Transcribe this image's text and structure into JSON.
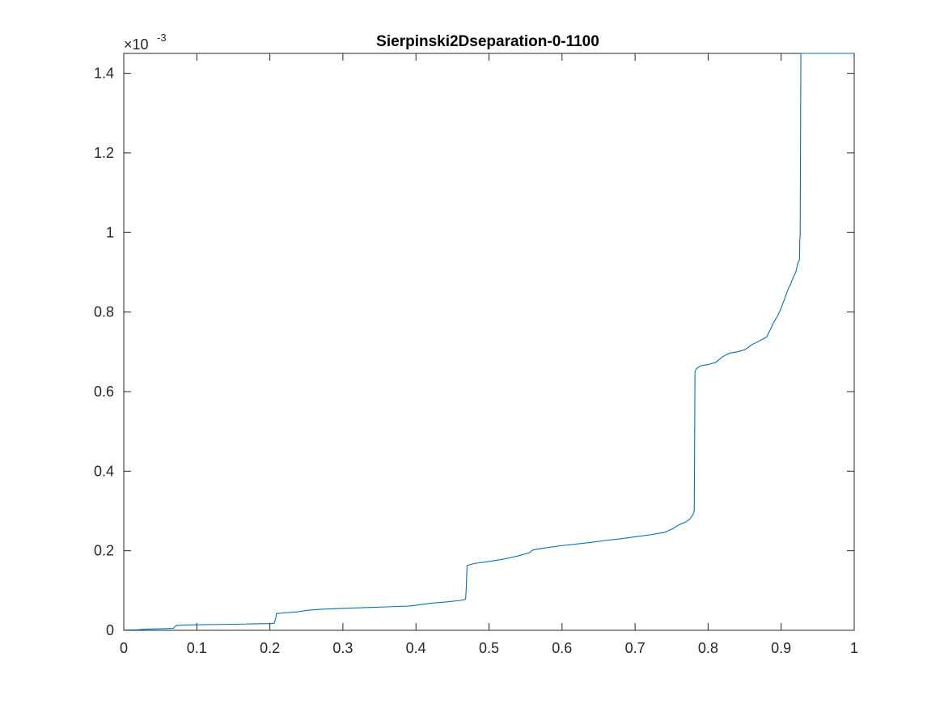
{
  "chart_data": {
    "type": "line",
    "title": "Sierpinski2Dseparation-0-1100",
    "xlabel": "",
    "ylabel": "",
    "xlim": [
      0,
      1
    ],
    "ylim": [
      0,
      0.00145
    ],
    "y_exponent_base": "×10",
    "y_exponent_power": "-3",
    "x_ticks": [
      {
        "value": 0,
        "label": "0"
      },
      {
        "value": 0.1,
        "label": "0.1"
      },
      {
        "value": 0.2,
        "label": "0.2"
      },
      {
        "value": 0.3,
        "label": "0.3"
      },
      {
        "value": 0.4,
        "label": "0.4"
      },
      {
        "value": 0.5,
        "label": "0.5"
      },
      {
        "value": 0.6,
        "label": "0.6"
      },
      {
        "value": 0.7,
        "label": "0.7"
      },
      {
        "value": 0.8,
        "label": "0.8"
      },
      {
        "value": 0.9,
        "label": "0.9"
      },
      {
        "value": 1,
        "label": "1"
      }
    ],
    "y_ticks": [
      {
        "value": 0,
        "label": "0"
      },
      {
        "value": 0.0002,
        "label": "0.2"
      },
      {
        "value": 0.0004,
        "label": "0.4"
      },
      {
        "value": 0.0006,
        "label": "0.6"
      },
      {
        "value": 0.0008,
        "label": "0.8"
      },
      {
        "value": 0.001,
        "label": "1"
      },
      {
        "value": 0.0012,
        "label": "1.2"
      },
      {
        "value": 0.0014,
        "label": "1.4"
      }
    ],
    "grid": false,
    "box": true,
    "series": [
      {
        "color": "#0072bd",
        "x": [
          0,
          0.003,
          0.01,
          0.02,
          0.03,
          0.05,
          0.068,
          0.07,
          0.072,
          0.08,
          0.09,
          0.1,
          0.12,
          0.14,
          0.16,
          0.18,
          0.2,
          0.206,
          0.208,
          0.209,
          0.22,
          0.24,
          0.25,
          0.27,
          0.3,
          0.33,
          0.36,
          0.39,
          0.4,
          0.42,
          0.44,
          0.46,
          0.468,
          0.469,
          0.47,
          0.48,
          0.5,
          0.52,
          0.54,
          0.555,
          0.56,
          0.58,
          0.6,
          0.62,
          0.64,
          0.66,
          0.68,
          0.7,
          0.72,
          0.74,
          0.75,
          0.76,
          0.77,
          0.775,
          0.779,
          0.781,
          0.7815,
          0.782,
          0.784,
          0.79,
          0.8,
          0.81,
          0.82,
          0.83,
          0.84,
          0.85,
          0.86,
          0.87,
          0.88,
          0.885,
          0.89,
          0.895,
          0.9,
          0.905,
          0.91,
          0.913,
          0.916,
          0.92,
          0.923,
          0.925,
          0.9255,
          0.926,
          0.927,
          0.93,
          0.95,
          1.0
        ],
        "y": [
          0,
          5e-07,
          1e-06,
          1.5e-06,
          3e-06,
          4e-06,
          5e-06,
          9e-06,
          1.2e-05,
          1.3e-05,
          1.35e-05,
          1.4e-05,
          1.45e-05,
          1.5e-05,
          1.55e-05,
          1.65e-05,
          1.7e-05,
          1.8e-05,
          3e-05,
          4.2e-05,
          4.4e-05,
          4.7e-05,
          5e-05,
          5.3e-05,
          5.5e-05,
          5.7e-05,
          5.9e-05,
          6.1e-05,
          6.3e-05,
          6.8e-05,
          7.1e-05,
          7.5e-05,
          7.8e-05,
          0.00011,
          0.000163,
          0.000168,
          0.000173,
          0.000179,
          0.000187,
          0.000195,
          0.000202,
          0.000208,
          0.000213,
          0.000217,
          0.000221,
          0.000226,
          0.00023,
          0.000235,
          0.00024,
          0.000246,
          0.000254,
          0.000265,
          0.000273,
          0.00028,
          0.00029,
          0.0003,
          0.00045,
          0.00065,
          0.000658,
          0.000665,
          0.000668,
          0.000673,
          0.000688,
          0.000697,
          0.0007,
          0.000705,
          0.000718,
          0.000727,
          0.000737,
          0.000755,
          0.000775,
          0.00079,
          0.00081,
          0.000835,
          0.00086,
          0.00087,
          0.000885,
          0.0009,
          0.000925,
          0.00093,
          0.00098,
          0.00099,
          0.00145,
          0.00145,
          0.00145,
          0.00145
        ]
      }
    ]
  }
}
